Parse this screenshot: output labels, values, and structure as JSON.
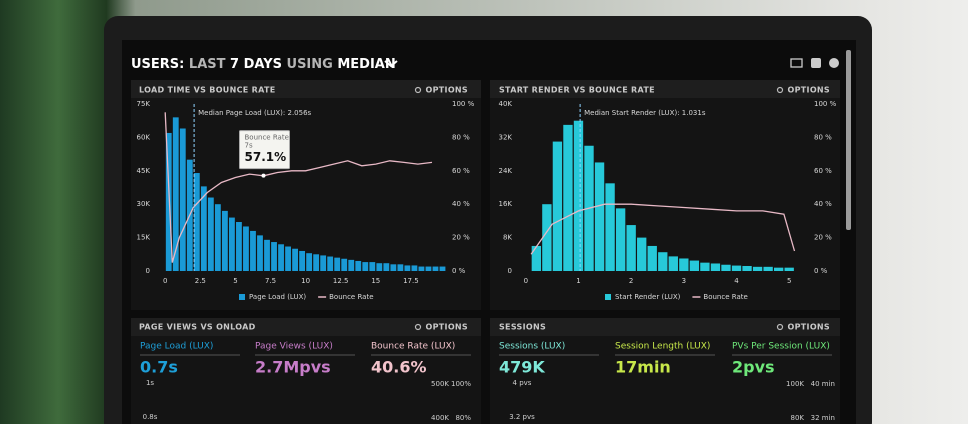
{
  "header": {
    "title_parts": [
      "USERS:",
      "LAST",
      "7 DAYS",
      "USING",
      "MEDIAN"
    ]
  },
  "chart_data": [
    {
      "type": "histogram",
      "title": "LOAD TIME VS BOUNCE RATE",
      "options": "OPTIONS",
      "bins": [
        0,
        0.5,
        1,
        1.5,
        2,
        2.5,
        3,
        3.5,
        4,
        4.5,
        5,
        5.5,
        6,
        6.5,
        7,
        7.5,
        8,
        8.5,
        9,
        9.5,
        10,
        10.5,
        11,
        11.5,
        12,
        12.5,
        13,
        13.5,
        14,
        14.5,
        15,
        15.5,
        16,
        16.5,
        17,
        17.5,
        18,
        18.5,
        19,
        19.5,
        20
      ],
      "series": [
        {
          "name": "Page Load (LUX)",
          "color": "#1a9ad6",
          "values": [
            62000,
            69000,
            64000,
            50000,
            44000,
            38000,
            33000,
            30000,
            27000,
            24000,
            22000,
            20000,
            18000,
            16000,
            14000,
            13000,
            12000,
            11000,
            10000,
            9000,
            8000,
            7500,
            7000,
            6500,
            6000,
            5500,
            5000,
            4500,
            4000,
            4000,
            3500,
            3500,
            3000,
            3000,
            2500,
            2500,
            2000,
            2000,
            2000,
            2000
          ]
        },
        {
          "name": "Bounce Rate",
          "color": "#e8b9c6",
          "axis": "y2",
          "x": [
            0,
            0.5,
            1,
            2,
            3,
            4,
            5,
            6,
            7,
            8,
            9,
            10,
            11,
            12,
            13,
            14,
            15,
            16,
            17,
            18,
            19
          ],
          "values": [
            95,
            5,
            20,
            38,
            47,
            53,
            56,
            58,
            57,
            59,
            60,
            60,
            62,
            64,
            66,
            63,
            64,
            66,
            65,
            64,
            65
          ]
        }
      ],
      "xlim": [
        -0.8,
        20
      ],
      "xticks": [
        0,
        2.5,
        5,
        7.5,
        10,
        12.5,
        15,
        17.5
      ],
      "ylim": [
        0,
        75000
      ],
      "yticks": [
        0,
        {
          "value": 15000,
          "label": "15K"
        },
        {
          "value": 30000,
          "label": "30K"
        },
        {
          "value": 45000,
          "label": "45K"
        },
        {
          "value": 60000,
          "label": "60K"
        },
        {
          "value": 75000,
          "label": "75K"
        }
      ],
      "y2lim": [
        0,
        100
      ],
      "y2ticks": [
        {
          "value": 0,
          "label": "0 %"
        },
        {
          "value": 20,
          "label": "20 %"
        },
        {
          "value": 40,
          "label": "40 %"
        },
        {
          "value": 60,
          "label": "60 %"
        },
        {
          "value": 80,
          "label": "80 %"
        },
        {
          "value": 100,
          "label": "100 %"
        }
      ],
      "annotation": {
        "text": "Median Page Load (LUX): 2.056s",
        "x": 2.056
      },
      "tooltip": {
        "title": "Bounce Rate",
        "x": {
          "value": 7,
          "label": "7s"
        },
        "value": 57.1,
        "value_label": "57.1%"
      }
    },
    {
      "type": "histogram",
      "title": "START RENDER VS BOUNCE RATE",
      "options": "OPTIONS",
      "bins": [
        0.1,
        0.3,
        0.5,
        0.7,
        0.9,
        1.1,
        1.3,
        1.5,
        1.7,
        1.9,
        2.1,
        2.3,
        2.5,
        2.7,
        2.9,
        3.1,
        3.3,
        3.5,
        3.7,
        3.9,
        4.1,
        4.3,
        4.5,
        4.7,
        4.9,
        5.1
      ],
      "series": [
        {
          "name": "Start Render (LUX)",
          "color": "#27c9d9",
          "values": [
            6000,
            16000,
            31000,
            35000,
            36000,
            30000,
            26000,
            21000,
            15000,
            11000,
            8000,
            6000,
            4500,
            3500,
            3000,
            2500,
            2000,
            1800,
            1500,
            1300,
            1200,
            1000,
            1000,
            800,
            800
          ]
        },
        {
          "name": "Bounce Rate",
          "color": "#e8b9c6",
          "axis": "y2",
          "x": [
            0.1,
            0.5,
            1,
            1.5,
            2,
            2.5,
            3,
            3.5,
            4,
            4.5,
            4.9,
            5.1
          ],
          "values": [
            10,
            28,
            36,
            40,
            40,
            39,
            38,
            37,
            36,
            36,
            34,
            12
          ]
        }
      ],
      "xlim": [
        -0.3,
        5.3
      ],
      "xticks": [
        0,
        1,
        2,
        3,
        4,
        5
      ],
      "ylim": [
        0,
        40000
      ],
      "yticks": [
        0,
        {
          "value": 8000,
          "label": "8K"
        },
        {
          "value": 16000,
          "label": "16K"
        },
        {
          "value": 24000,
          "label": "24K"
        },
        {
          "value": 32000,
          "label": "32K"
        },
        {
          "value": 40000,
          "label": "40K"
        }
      ],
      "y2lim": [
        0,
        100
      ],
      "y2ticks": [
        {
          "value": 0,
          "label": "0 %"
        },
        {
          "value": 20,
          "label": "20 %"
        },
        {
          "value": 40,
          "label": "40 %"
        },
        {
          "value": 60,
          "label": "60 %"
        },
        {
          "value": 80,
          "label": "80 %"
        },
        {
          "value": 100,
          "label": "100 %"
        }
      ],
      "annotation": {
        "text": "Median Start Render (LUX): 1.031s",
        "x": 1.031
      }
    }
  ],
  "panels": [
    {
      "title": "PAGE VIEWS VS ONLOAD",
      "options": "OPTIONS",
      "stats": [
        {
          "label": "Page Load (LUX)",
          "value": "0.7s",
          "color": "#1e9fd8"
        },
        {
          "label": "Page Views (LUX)",
          "value": "2.7Mpvs",
          "color": "#c77dc9"
        },
        {
          "label": "Bounce Rate (LUX)",
          "value": "40.6%",
          "color": "#f2c4cc"
        }
      ],
      "left_axis": [
        "1s",
        "0.8s"
      ],
      "right_axis": [
        [
          "500K",
          "100%"
        ],
        [
          "400K",
          "80%"
        ]
      ]
    },
    {
      "title": "SESSIONS",
      "options": "OPTIONS",
      "stats": [
        {
          "label": "Sessions (LUX)",
          "value": "479K",
          "color": "#7ee8d8"
        },
        {
          "label": "Session Length (LUX)",
          "value": "17min",
          "color": "#c8e84a"
        },
        {
          "label": "PVs Per Session (LUX)",
          "value": "2pvs",
          "color": "#6ee87a"
        }
      ],
      "left_axis": [
        "4 pvs",
        "3.2 pvs"
      ],
      "right_axis": [
        [
          "100K",
          "40 min"
        ],
        [
          "80K",
          "32 min"
        ]
      ]
    }
  ]
}
